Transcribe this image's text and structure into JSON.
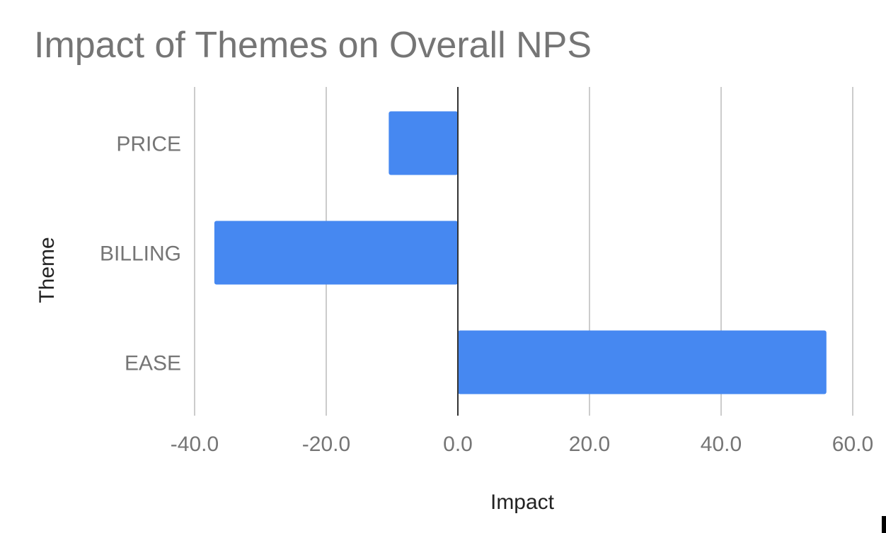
{
  "chart_data": {
    "type": "bar",
    "orientation": "horizontal",
    "title": "Impact of Themes on Overall NPS",
    "xlabel": "Impact",
    "ylabel": "Theme",
    "categories": [
      "PRICE",
      "BILLING",
      "EASE"
    ],
    "series": [
      {
        "values": [
          -10.5,
          -37.0,
          56.0
        ]
      }
    ],
    "xlim": [
      -40.0,
      60.0
    ],
    "x_ticks": [
      "-40.0",
      "-20.0",
      "0.0",
      "20.0",
      "40.0",
      "60.0"
    ],
    "x_tick_values": [
      -40,
      -20,
      0,
      20,
      40,
      60
    ],
    "grid": true,
    "legend": "none"
  },
  "colors": {
    "bar": "#4688f1",
    "grid": "#cccccc",
    "zero_line": "#333333",
    "text": "#757575",
    "axis_title": "#222222"
  }
}
